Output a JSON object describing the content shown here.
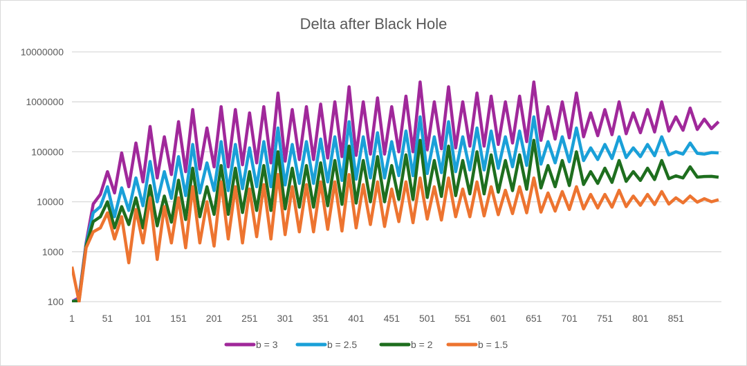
{
  "chart_data": {
    "type": "line",
    "title": "Delta after Black Hole",
    "xlabel": "",
    "ylabel": "",
    "y_scale": "log",
    "ylim": [
      100,
      10000000
    ],
    "xlim": [
      1,
      915
    ],
    "grid": true,
    "legend_position": "bottom",
    "y_ticks": [
      "100",
      "1000",
      "10000",
      "100000",
      "1000000",
      "10000000"
    ],
    "x_ticks": [
      "1",
      "51",
      "101",
      "151",
      "201",
      "251",
      "301",
      "351",
      "401",
      "451",
      "501",
      "551",
      "601",
      "651",
      "701",
      "751",
      "801",
      "851"
    ],
    "x": [
      1,
      11,
      21,
      31,
      41,
      51,
      61,
      71,
      81,
      91,
      101,
      111,
      121,
      131,
      141,
      151,
      161,
      171,
      181,
      191,
      201,
      211,
      221,
      231,
      241,
      251,
      261,
      271,
      281,
      291,
      301,
      311,
      321,
      331,
      341,
      351,
      361,
      371,
      381,
      391,
      401,
      411,
      421,
      431,
      441,
      451,
      461,
      471,
      481,
      491,
      501,
      511,
      521,
      531,
      541,
      551,
      561,
      571,
      581,
      591,
      601,
      611,
      621,
      631,
      641,
      651,
      661,
      671,
      681,
      691,
      701,
      711,
      721,
      731,
      741,
      751,
      761,
      771,
      781,
      791,
      801,
      811,
      821,
      831,
      841,
      851,
      861,
      871,
      881,
      891,
      901,
      911
    ],
    "series": [
      {
        "name": "b = 3",
        "color": "#A0289A",
        "values": [
          100,
          120,
          1500,
          9000,
          14000,
          40000,
          15000,
          95000,
          20000,
          150000,
          25000,
          320000,
          30000,
          200000,
          35000,
          400000,
          40000,
          700000,
          45000,
          300000,
          50000,
          800000,
          50000,
          700000,
          55000,
          600000,
          60000,
          800000,
          60000,
          1500000,
          65000,
          700000,
          70000,
          800000,
          70000,
          900000,
          75000,
          1000000,
          80000,
          2000000,
          85000,
          1000000,
          90000,
          1200000,
          90000,
          800000,
          100000,
          1300000,
          100000,
          2500000,
          110000,
          1000000,
          115000,
          2000000,
          120000,
          1000000,
          130000,
          1500000,
          130000,
          1300000,
          140000,
          1000000,
          150000,
          1300000,
          160000,
          2500000,
          170000,
          800000,
          180000,
          1000000,
          190000,
          1500000,
          200000,
          600000,
          210000,
          700000,
          220000,
          1000000,
          230000,
          600000,
          240000,
          700000,
          250000,
          1000000,
          260000,
          500000,
          270000,
          750000,
          280000,
          450000,
          290000,
          400000
        ]
      },
      {
        "name": "b = 2.5",
        "color": "#1AA0D8",
        "values": [
          100,
          110,
          1400,
          6000,
          8000,
          20000,
          5000,
          19000,
          6700,
          30000,
          8300,
          64000,
          10000,
          40000,
          11700,
          80000,
          13300,
          140000,
          15000,
          60000,
          16700,
          160000,
          16700,
          140000,
          18300,
          120000,
          20000,
          160000,
          20000,
          300000,
          21700,
          140000,
          23300,
          160000,
          23300,
          180000,
          25000,
          200000,
          26700,
          400000,
          28300,
          200000,
          30000,
          240000,
          30000,
          160000,
          33300,
          260000,
          33300,
          500000,
          36700,
          200000,
          38300,
          400000,
          40000,
          200000,
          43300,
          300000,
          43300,
          260000,
          46700,
          200000,
          50000,
          260000,
          53300,
          500000,
          56700,
          160000,
          60000,
          200000,
          63300,
          300000,
          66700,
          120000,
          70000,
          140000,
          73300,
          200000,
          76700,
          120000,
          80000,
          140000,
          83300,
          200000,
          86700,
          100000,
          90000,
          150000,
          93300,
          90000,
          96700,
          95000
        ]
      },
      {
        "name": "b = 2",
        "color": "#1E6E1E",
        "values": [
          100,
          105,
          1300,
          4000,
          5000,
          10000,
          3000,
          8000,
          3500,
          12000,
          3000,
          21000,
          3300,
          13000,
          3900,
          27000,
          4400,
          47000,
          5000,
          20000,
          5600,
          53000,
          5600,
          47000,
          6100,
          40000,
          6700,
          53000,
          6700,
          100000,
          7200,
          47000,
          7800,
          53000,
          7800,
          60000,
          8300,
          67000,
          8900,
          130000,
          9400,
          67000,
          10000,
          80000,
          10000,
          53000,
          11100,
          87000,
          11100,
          170000,
          12200,
          67000,
          12800,
          130000,
          13300,
          67000,
          14400,
          100000,
          14400,
          87000,
          15600,
          67000,
          16700,
          87000,
          17800,
          170000,
          18900,
          53000,
          20000,
          67000,
          21100,
          100000,
          22200,
          40000,
          23300,
          47000,
          24400,
          67000,
          25600,
          40000,
          26700,
          47000,
          27800,
          67000,
          28900,
          33000,
          30000,
          50000,
          31100,
          32000,
          32200,
          31000
        ]
      },
      {
        "name": "b = 1.5",
        "color": "#ED7430",
        "values": [
          500,
          100,
          1200,
          2500,
          3000,
          6000,
          1800,
          5000,
          600,
          7000,
          1500,
          12000,
          700,
          8000,
          1500,
          12000,
          1200,
          20000,
          1500,
          10000,
          1300,
          25000,
          1800,
          20000,
          1500,
          18000,
          2000,
          22000,
          1800,
          35000,
          2200,
          20000,
          2500,
          22000,
          2500,
          25000,
          2800,
          25000,
          2600,
          35000,
          3000,
          22000,
          3500,
          25000,
          3200,
          18000,
          4000,
          25000,
          3800,
          30000,
          4500,
          20000,
          4300,
          30000,
          5000,
          18000,
          5000,
          25000,
          5200,
          20000,
          5500,
          17000,
          5800,
          20000,
          6000,
          30000,
          6200,
          15000,
          6500,
          16000,
          7000,
          20000,
          7200,
          14000,
          7500,
          14000,
          7800,
          17000,
          8000,
          13000,
          8500,
          14000,
          8800,
          16000,
          9000,
          12000,
          9500,
          13000,
          9800,
          11500,
          10000,
          11000
        ]
      }
    ]
  }
}
